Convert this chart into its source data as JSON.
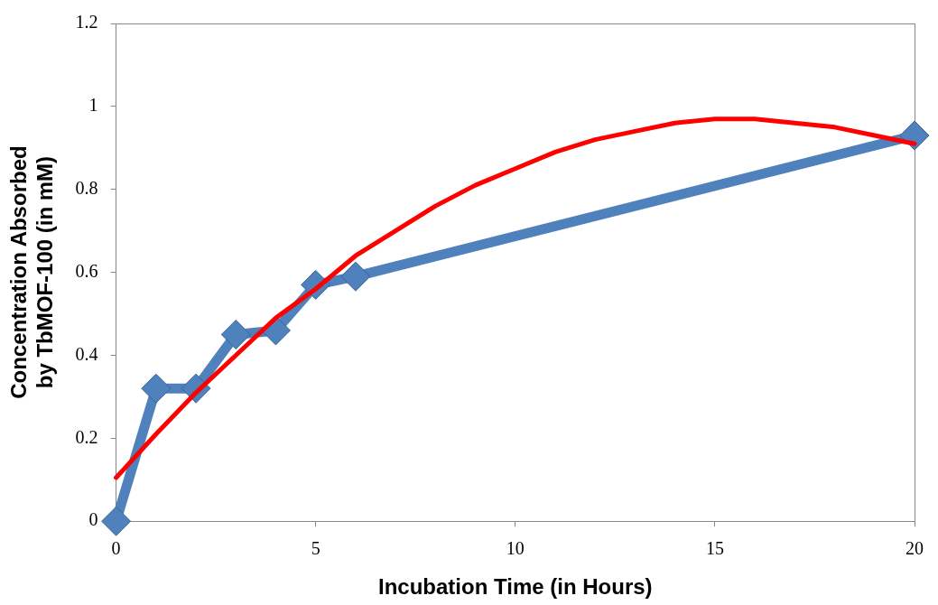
{
  "chart_data": {
    "type": "line",
    "xlabel": "Incubation Time (in Hours)",
    "ylabel": "Concentration Absorbed by TbMOF-100 (in mM)",
    "xlim": [
      0,
      20
    ],
    "xticks": [
      0,
      5,
      10,
      15,
      20
    ],
    "ylim": [
      0,
      1.2
    ],
    "yticks": [
      0,
      0.2,
      0.4,
      0.6,
      0.8,
      1,
      1.2
    ],
    "grid": false,
    "legend": false,
    "series": [
      {
        "type": "line",
        "color": "#4f81bd",
        "marker": "diamond",
        "x": [
          0,
          1,
          2,
          3,
          4,
          5,
          6,
          20
        ],
        "values": [
          0,
          0.32,
          0.32,
          0.45,
          0.46,
          0.57,
          0.59,
          0.93
        ]
      },
      {
        "type": "line",
        "color": "#ff0000",
        "marker": "none",
        "x": [
          0,
          1,
          2,
          3,
          4,
          5,
          6,
          7,
          8,
          9,
          10,
          11,
          12,
          13,
          14,
          15,
          16,
          17,
          18,
          19,
          20
        ],
        "values": [
          0.105,
          0.21,
          0.31,
          0.4,
          0.49,
          0.56,
          0.64,
          0.7,
          0.76,
          0.81,
          0.85,
          0.89,
          0.92,
          0.94,
          0.96,
          0.97,
          0.97,
          0.96,
          0.95,
          0.93,
          0.91
        ]
      }
    ]
  }
}
